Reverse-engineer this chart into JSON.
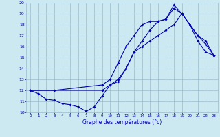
{
  "xlabel": "Graphe des températures (°c)",
  "bg_color": "#cce8f0",
  "line_color": "#0000aa",
  "grid_color": "#99bbcc",
  "xlim": [
    -0.5,
    23.5
  ],
  "ylim": [
    10,
    20
  ],
  "yticks": [
    10,
    11,
    12,
    13,
    14,
    15,
    16,
    17,
    18,
    19,
    20
  ],
  "xticks": [
    0,
    1,
    2,
    3,
    4,
    5,
    6,
    7,
    8,
    9,
    10,
    11,
    12,
    13,
    14,
    15,
    16,
    17,
    18,
    19,
    20,
    21,
    22,
    23
  ],
  "line1_x": [
    0,
    1,
    2,
    3,
    4,
    5,
    6,
    7,
    8,
    9,
    10,
    11,
    12,
    13,
    14,
    15,
    16,
    17,
    18,
    19,
    20,
    21,
    22,
    23
  ],
  "line1_y": [
    12.0,
    11.7,
    11.2,
    11.1,
    10.8,
    10.7,
    10.5,
    10.1,
    10.5,
    11.5,
    12.5,
    13.0,
    14.0,
    15.5,
    16.0,
    16.5,
    17.0,
    17.5,
    18.0,
    19.0,
    18.0,
    16.5,
    15.5,
    15.2
  ],
  "line2_x": [
    0,
    3,
    9,
    10,
    11,
    12,
    13,
    14,
    15,
    16,
    17,
    18,
    19,
    20,
    21,
    22,
    23
  ],
  "line2_y": [
    12.0,
    12.0,
    12.5,
    13.0,
    14.5,
    16.0,
    17.0,
    18.0,
    18.3,
    18.3,
    18.5,
    19.5,
    19.0,
    18.0,
    17.0,
    16.2,
    15.2
  ],
  "line3_x": [
    0,
    9,
    10,
    11,
    12,
    13,
    14,
    15,
    16,
    17,
    18,
    19,
    20,
    21,
    22,
    23
  ],
  "line3_y": [
    12.0,
    12.0,
    12.5,
    12.8,
    14.0,
    15.5,
    16.5,
    17.5,
    18.3,
    18.5,
    19.8,
    19.0,
    18.0,
    17.0,
    16.5,
    15.2
  ]
}
